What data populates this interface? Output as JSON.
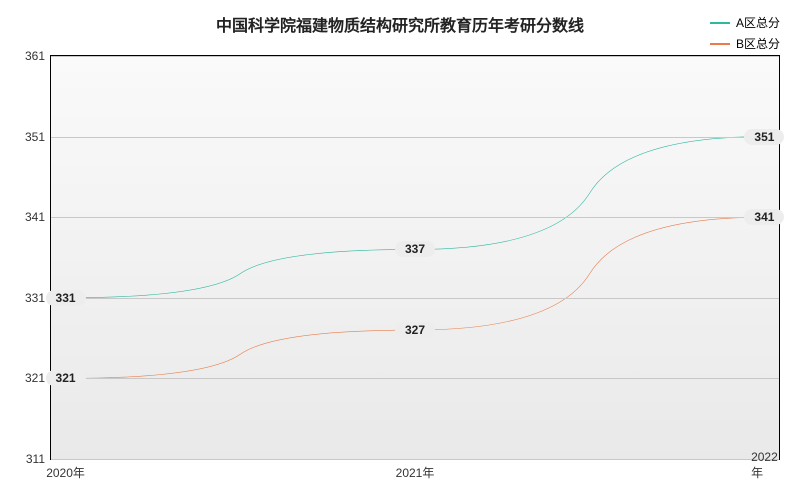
{
  "chart": {
    "type": "line",
    "title": "中国科学院福建物质结构研究所教育历年考研分数线",
    "title_fontsize": 16,
    "background_color": "#ffffff",
    "plot_background_top": "#fafafa",
    "plot_background_bottom": "#e9e9e9",
    "grid_color": "#c8c8c8",
    "border_color": "#000000",
    "x_categories": [
      "2020年",
      "2021年",
      "2022年"
    ],
    "x_positions_pct": [
      2,
      50,
      98
    ],
    "ylim": [
      311,
      361
    ],
    "ytick_step": 10,
    "yticks": [
      311,
      321,
      331,
      341,
      351,
      361
    ],
    "label_fontsize": 12,
    "series": [
      {
        "name": "A区总分",
        "color": "#2fb8a0",
        "line_width": 2,
        "values": [
          331,
          337,
          351
        ],
        "label_bg": "#ededed"
      },
      {
        "name": "B区总分",
        "color": "#e87c4a",
        "line_width": 2,
        "values": [
          321,
          327,
          341
        ],
        "label_bg": "#ededed"
      }
    ]
  }
}
